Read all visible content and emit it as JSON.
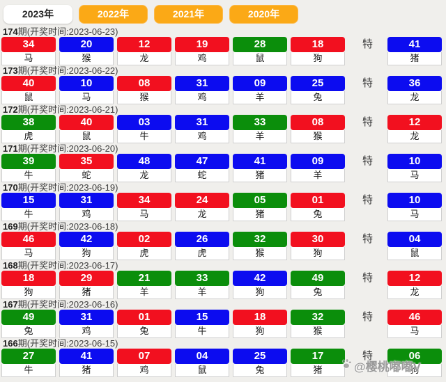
{
  "tabs": [
    {
      "label": "2023年",
      "active": true
    },
    {
      "label": "2022年",
      "active": false
    },
    {
      "label": "2021年",
      "active": false
    },
    {
      "label": "2020年",
      "active": false
    }
  ],
  "special_label": "特",
  "label_prefix_suffix": {
    "period_unit": "期",
    "time_prefix": "(开奖时间:",
    "time_suffix": ")"
  },
  "colors": {
    "red": "#f2101f",
    "blue": "#0c0cf0",
    "green": "#0b8e0b",
    "tab_orange": "#fba916",
    "page_bg": "#f0efec"
  },
  "watermark": {
    "icon": "paw-icon",
    "text": "@樱桃嘟嘟V"
  },
  "draws": [
    {
      "period": "174",
      "date": "2023-06-23",
      "numbers": [
        {
          "num": "34",
          "color": "red",
          "zodiac": "马"
        },
        {
          "num": "20",
          "color": "blue",
          "zodiac": "猴"
        },
        {
          "num": "12",
          "color": "red",
          "zodiac": "龙"
        },
        {
          "num": "19",
          "color": "red",
          "zodiac": "鸡"
        },
        {
          "num": "28",
          "color": "green",
          "zodiac": "鼠"
        },
        {
          "num": "18",
          "color": "red",
          "zodiac": "狗"
        }
      ],
      "special": {
        "num": "41",
        "color": "blue",
        "zodiac": "猪"
      }
    },
    {
      "period": "173",
      "date": "2023-06-22",
      "numbers": [
        {
          "num": "40",
          "color": "red",
          "zodiac": "鼠"
        },
        {
          "num": "10",
          "color": "blue",
          "zodiac": "马"
        },
        {
          "num": "08",
          "color": "red",
          "zodiac": "猴"
        },
        {
          "num": "31",
          "color": "blue",
          "zodiac": "鸡"
        },
        {
          "num": "09",
          "color": "blue",
          "zodiac": "羊"
        },
        {
          "num": "25",
          "color": "blue",
          "zodiac": "兔"
        }
      ],
      "special": {
        "num": "36",
        "color": "blue",
        "zodiac": "龙"
      }
    },
    {
      "period": "172",
      "date": "2023-06-21",
      "numbers": [
        {
          "num": "38",
          "color": "green",
          "zodiac": "虎"
        },
        {
          "num": "40",
          "color": "red",
          "zodiac": "鼠"
        },
        {
          "num": "03",
          "color": "blue",
          "zodiac": "牛"
        },
        {
          "num": "31",
          "color": "blue",
          "zodiac": "鸡"
        },
        {
          "num": "33",
          "color": "green",
          "zodiac": "羊"
        },
        {
          "num": "08",
          "color": "red",
          "zodiac": "猴"
        }
      ],
      "special": {
        "num": "12",
        "color": "red",
        "zodiac": "龙"
      }
    },
    {
      "period": "171",
      "date": "2023-06-20",
      "numbers": [
        {
          "num": "39",
          "color": "green",
          "zodiac": "牛"
        },
        {
          "num": "35",
          "color": "red",
          "zodiac": "蛇"
        },
        {
          "num": "48",
          "color": "blue",
          "zodiac": "龙"
        },
        {
          "num": "47",
          "color": "blue",
          "zodiac": "蛇"
        },
        {
          "num": "41",
          "color": "blue",
          "zodiac": "猪"
        },
        {
          "num": "09",
          "color": "blue",
          "zodiac": "羊"
        }
      ],
      "special": {
        "num": "10",
        "color": "blue",
        "zodiac": "马"
      }
    },
    {
      "period": "170",
      "date": "2023-06-19",
      "numbers": [
        {
          "num": "15",
          "color": "blue",
          "zodiac": "牛"
        },
        {
          "num": "31",
          "color": "blue",
          "zodiac": "鸡"
        },
        {
          "num": "34",
          "color": "red",
          "zodiac": "马"
        },
        {
          "num": "24",
          "color": "red",
          "zodiac": "龙"
        },
        {
          "num": "05",
          "color": "green",
          "zodiac": "猪"
        },
        {
          "num": "01",
          "color": "red",
          "zodiac": "兔"
        }
      ],
      "special": {
        "num": "10",
        "color": "blue",
        "zodiac": "马"
      }
    },
    {
      "period": "169",
      "date": "2023-06-18",
      "numbers": [
        {
          "num": "46",
          "color": "red",
          "zodiac": "马"
        },
        {
          "num": "42",
          "color": "blue",
          "zodiac": "狗"
        },
        {
          "num": "02",
          "color": "red",
          "zodiac": "虎"
        },
        {
          "num": "26",
          "color": "blue",
          "zodiac": "虎"
        },
        {
          "num": "32",
          "color": "green",
          "zodiac": "猴"
        },
        {
          "num": "30",
          "color": "red",
          "zodiac": "狗"
        }
      ],
      "special": {
        "num": "04",
        "color": "blue",
        "zodiac": "鼠"
      }
    },
    {
      "period": "168",
      "date": "2023-06-17",
      "numbers": [
        {
          "num": "18",
          "color": "red",
          "zodiac": "狗"
        },
        {
          "num": "29",
          "color": "red",
          "zodiac": "猪"
        },
        {
          "num": "21",
          "color": "green",
          "zodiac": "羊"
        },
        {
          "num": "33",
          "color": "green",
          "zodiac": "羊"
        },
        {
          "num": "42",
          "color": "blue",
          "zodiac": "狗"
        },
        {
          "num": "49",
          "color": "green",
          "zodiac": "兔"
        }
      ],
      "special": {
        "num": "12",
        "color": "red",
        "zodiac": "龙"
      }
    },
    {
      "period": "167",
      "date": "2023-06-16",
      "numbers": [
        {
          "num": "49",
          "color": "green",
          "zodiac": "兔"
        },
        {
          "num": "31",
          "color": "blue",
          "zodiac": "鸡"
        },
        {
          "num": "01",
          "color": "red",
          "zodiac": "兔"
        },
        {
          "num": "15",
          "color": "blue",
          "zodiac": "牛"
        },
        {
          "num": "18",
          "color": "red",
          "zodiac": "狗"
        },
        {
          "num": "32",
          "color": "green",
          "zodiac": "猴"
        }
      ],
      "special": {
        "num": "46",
        "color": "red",
        "zodiac": "马"
      }
    },
    {
      "period": "166",
      "date": "2023-06-15",
      "numbers": [
        {
          "num": "27",
          "color": "green",
          "zodiac": "牛"
        },
        {
          "num": "41",
          "color": "blue",
          "zodiac": "猪"
        },
        {
          "num": "07",
          "color": "red",
          "zodiac": "鸡"
        },
        {
          "num": "04",
          "color": "blue",
          "zodiac": "鼠"
        },
        {
          "num": "25",
          "color": "blue",
          "zodiac": "兔"
        },
        {
          "num": "17",
          "color": "green",
          "zodiac": "猪"
        }
      ],
      "special": {
        "num": "06",
        "color": "green",
        "zodiac": "狗"
      }
    }
  ]
}
